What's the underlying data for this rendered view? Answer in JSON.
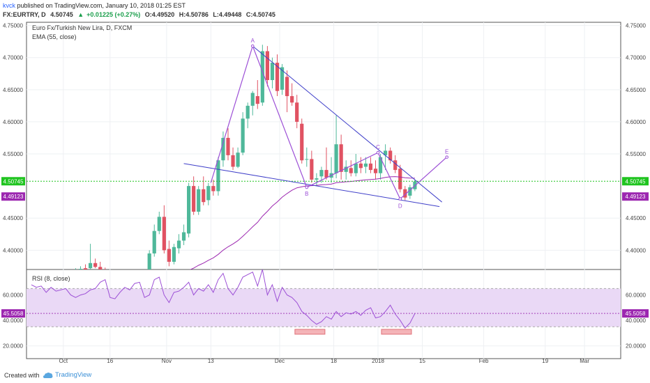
{
  "header": {
    "author": "kvck",
    "published_text": "published on TradingView.com, January 10, 2018 01:25 EST",
    "symbol": "FX:EURTRY, D",
    "last": "4.50745",
    "change": "+0.01225 (+0.27%)",
    "open": "O:4.49520",
    "high": "H:4.50786",
    "low": "L:4.49448",
    "close": "C:4.50745"
  },
  "footer": {
    "created_with": "Created with",
    "brand": "TradingView"
  },
  "colors": {
    "up": "#4fb89a",
    "down": "#e05262",
    "ema": "#9c27b0",
    "trend": "#3f3fc9",
    "pattern": "#9c4fd6",
    "rsi_band": "#ead9f6",
    "price_line": "#1fc41f"
  },
  "chart_data": [
    {
      "type": "candlestick",
      "title": "Euro Fx/Turkish New Lira, D, FXCM",
      "indicator": "EMA (55, close)",
      "ylim": [
        4.37,
        4.755
      ],
      "y_ticks": [
        "4.75000",
        "4.70000",
        "4.65000",
        "4.60000",
        "4.55000",
        "4.45000",
        "4.40000"
      ],
      "x_ticks": [
        "Oct",
        "16",
        "Nov",
        "13",
        "Dec",
        "18",
        "2018",
        "15",
        "Feb",
        "19",
        "Mar"
      ],
      "last_price_label": "4.50745",
      "ema_label": "4.49123",
      "candles": [
        [
          4.352,
          4.358,
          4.345,
          4.35
        ],
        [
          4.351,
          4.357,
          4.344,
          4.349
        ],
        [
          4.35,
          4.355,
          4.342,
          4.352
        ],
        [
          4.353,
          4.36,
          4.348,
          4.355
        ],
        [
          4.356,
          4.362,
          4.35,
          4.358
        ],
        [
          4.358,
          4.364,
          4.352,
          4.356
        ],
        [
          4.357,
          4.362,
          4.35,
          4.36
        ],
        [
          4.361,
          4.368,
          4.355,
          4.364
        ],
        [
          4.365,
          4.37,
          4.358,
          4.362
        ],
        [
          4.363,
          4.372,
          4.356,
          4.368
        ],
        [
          4.369,
          4.375,
          4.361,
          4.371
        ],
        [
          4.372,
          4.378,
          4.363,
          4.37
        ],
        [
          4.372,
          4.41,
          4.368,
          4.38
        ],
        [
          4.38,
          4.387,
          4.372,
          4.374
        ],
        [
          4.374,
          4.382,
          4.368,
          4.366
        ],
        [
          4.366,
          4.373,
          4.36,
          4.362
        ],
        [
          4.362,
          4.37,
          4.355,
          4.358
        ],
        [
          4.358,
          4.366,
          4.35,
          4.355
        ],
        [
          4.355,
          4.362,
          4.347,
          4.36
        ],
        [
          4.36,
          4.368,
          4.352,
          4.356
        ],
        [
          4.356,
          4.364,
          4.348,
          4.352
        ],
        [
          4.352,
          4.36,
          4.344,
          4.35
        ],
        [
          4.35,
          4.358,
          4.342,
          4.355
        ],
        [
          4.355,
          4.365,
          4.35,
          4.362
        ],
        [
          4.36,
          4.4,
          4.355,
          4.395
        ],
        [
          4.395,
          4.44,
          4.39,
          4.43
        ],
        [
          4.43,
          4.46,
          4.425,
          4.452
        ],
        [
          4.452,
          4.47,
          4.395,
          4.4
        ],
        [
          4.402,
          4.415,
          4.375,
          4.382
        ],
        [
          4.382,
          4.41,
          4.378,
          4.405
        ],
        [
          4.403,
          4.425,
          4.395,
          4.415
        ],
        [
          4.415,
          4.44,
          4.408,
          4.428
        ],
        [
          4.426,
          4.505,
          4.42,
          4.5
        ],
        [
          4.5,
          4.515,
          4.455,
          4.46
        ],
        [
          4.46,
          4.5,
          4.455,
          4.495
        ],
        [
          4.495,
          4.515,
          4.47,
          4.475
        ],
        [
          4.478,
          4.505,
          4.47,
          4.5
        ],
        [
          4.5,
          4.51,
          4.485,
          4.492
        ],
        [
          4.492,
          4.545,
          4.485,
          4.54
        ],
        [
          4.54,
          4.585,
          4.53,
          4.575
        ],
        [
          4.575,
          4.59,
          4.54,
          4.548
        ],
        [
          4.548,
          4.56,
          4.525,
          4.53
        ],
        [
          4.53,
          4.56,
          4.528,
          4.552
        ],
        [
          4.552,
          4.615,
          4.548,
          4.605
        ],
        [
          4.605,
          4.63,
          4.59,
          4.625
        ],
        [
          4.625,
          4.648,
          4.61,
          4.645
        ],
        [
          4.64,
          4.665,
          4.62,
          4.628
        ],
        [
          4.63,
          4.72,
          4.625,
          4.71
        ],
        [
          4.71,
          4.718,
          4.655,
          4.665
        ],
        [
          4.665,
          4.7,
          4.652,
          4.692
        ],
        [
          4.692,
          4.705,
          4.64,
          4.648
        ],
        [
          4.65,
          4.69,
          4.642,
          4.685
        ],
        [
          4.67,
          4.68,
          4.615,
          4.64
        ],
        [
          4.64,
          4.66,
          4.625,
          4.63
        ],
        [
          4.63,
          4.642,
          4.59,
          4.6
        ],
        [
          4.597,
          4.605,
          4.535,
          4.54
        ],
        [
          4.542,
          4.56,
          4.53,
          4.542
        ],
        [
          4.542,
          4.555,
          4.505,
          4.51
        ],
        [
          4.51,
          4.52,
          4.5,
          4.512
        ],
        [
          4.515,
          4.53,
          4.505,
          4.525
        ],
        [
          4.525,
          4.56,
          4.51,
          4.513
        ],
        [
          4.513,
          4.545,
          4.505,
          4.52
        ],
        [
          4.52,
          4.61,
          4.512,
          4.565
        ],
        [
          4.565,
          4.58,
          4.51,
          4.522
        ],
        [
          4.522,
          4.54,
          4.51,
          4.53
        ],
        [
          4.528,
          4.54,
          4.515,
          4.52
        ],
        [
          4.52,
          4.55,
          4.515,
          4.535
        ],
        [
          4.535,
          4.545,
          4.52,
          4.528
        ],
        [
          4.53,
          4.545,
          4.52,
          4.535
        ],
        [
          4.535,
          4.545,
          4.52,
          4.525
        ],
        [
          4.527,
          4.54,
          4.51,
          4.52
        ],
        [
          4.52,
          4.55,
          4.51,
          4.545
        ],
        [
          4.548,
          4.565,
          4.525,
          4.555
        ],
        [
          4.555,
          4.56,
          4.535,
          4.54
        ],
        [
          4.54,
          4.548,
          4.52,
          4.525
        ],
        [
          4.527,
          4.533,
          4.49,
          4.495
        ],
        [
          4.495,
          4.5,
          4.478,
          4.482
        ],
        [
          4.485,
          4.502,
          4.48,
          4.498
        ],
        [
          4.495,
          4.51,
          4.492,
          4.507
        ]
      ]
    },
    {
      "type": "line",
      "title": "RSI (8, close)",
      "ylim": [
        10,
        80
      ],
      "y_ticks": [
        "60.0000",
        "40.0000",
        "20.0000"
      ],
      "band": [
        35,
        65
      ],
      "last_label": "45.5058",
      "values": [
        68,
        66,
        67,
        62,
        66,
        63,
        64,
        65,
        60,
        58,
        60,
        61,
        64,
        65,
        70,
        72,
        58,
        57,
        62,
        66,
        64,
        69,
        70,
        58,
        60,
        72,
        74,
        60,
        54,
        62,
        63,
        66,
        70,
        60,
        65,
        63,
        68,
        62,
        72,
        77,
        65,
        60,
        66,
        74,
        76,
        78,
        67,
        80,
        60,
        68,
        55,
        66,
        60,
        58,
        54,
        47,
        44,
        40,
        37,
        39,
        43,
        41,
        47,
        43,
        46,
        45,
        47,
        44,
        48,
        50,
        42,
        43,
        47,
        52,
        45,
        40,
        34,
        38,
        45.5
      ]
    }
  ]
}
